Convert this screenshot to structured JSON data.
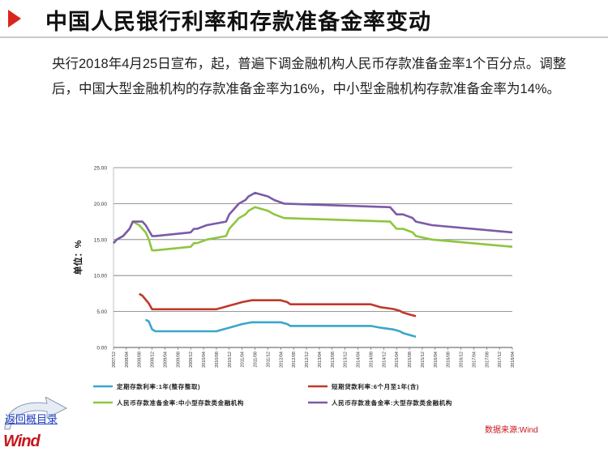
{
  "header": {
    "title": "中国人民银行利率和存款准备金率变动"
  },
  "summary": {
    "text": "央行2018年4月25日宣布，起，普遍下调金融机构人民币存款准备金率1个百分点。调整后，中国大型金融机构的存款准备金率为16%，中小型金融机构存款准备金率为14%。"
  },
  "footer": {
    "back_label": "返回概目录",
    "logo_text": "Wind",
    "source": "数据来源:Wind"
  },
  "colors": {
    "accent": "#d9261c",
    "deposit": "#3aa7c9",
    "loan": "#c0392b",
    "rrr_small": "#8dc63f",
    "rrr_large": "#7b5aa6"
  },
  "chart_data": {
    "type": "line",
    "ylabel": "单位：%",
    "ylim": [
      0,
      25
    ],
    "yticks": [
      "0.00",
      "5.00",
      "10.00",
      "15.00",
      "20.00",
      "25.00"
    ],
    "xlim": [
      "2007/12",
      "2018/04"
    ],
    "xticks": [
      "2007/12",
      "2008/04",
      "2008/08",
      "2008/12",
      "2009/04",
      "2009/08",
      "2009/12",
      "2010/04",
      "2010/08",
      "2010/12",
      "2011/04",
      "2011/08",
      "2011/12",
      "2012/04",
      "2012/08",
      "2012/12",
      "2013/04",
      "2013/08",
      "2013/12",
      "2014/04",
      "2014/08",
      "2014/12",
      "2015/04",
      "2015/08",
      "2015/12",
      "2016/04",
      "2016/08",
      "2016/12",
      "2017/04",
      "2017/08",
      "2017/12",
      "2018/04"
    ],
    "grid": true,
    "legend_position": "bottom",
    "series": [
      {
        "name": "定期存款利率:1年(整存整取)",
        "color_key": "deposit",
        "points": [
          [
            "2008/10",
            3.87
          ],
          [
            "2008/11",
            3.6
          ],
          [
            "2008/12",
            2.52
          ],
          [
            "2009/01",
            2.25
          ],
          [
            "2010/08",
            2.25
          ],
          [
            "2010/10",
            2.5
          ],
          [
            "2010/12",
            2.75
          ],
          [
            "2011/02",
            3.0
          ],
          [
            "2011/04",
            3.25
          ],
          [
            "2011/07",
            3.5
          ],
          [
            "2012/04",
            3.5
          ],
          [
            "2012/06",
            3.25
          ],
          [
            "2012/07",
            3.0
          ],
          [
            "2014/08",
            3.0
          ],
          [
            "2014/11",
            2.75
          ],
          [
            "2015/03",
            2.5
          ],
          [
            "2015/05",
            2.25
          ],
          [
            "2015/06",
            2.0
          ],
          [
            "2015/08",
            1.75
          ],
          [
            "2015/10",
            1.5
          ]
        ]
      },
      {
        "name": "短期贷款利率:6个月至1年(含)",
        "color_key": "loan",
        "points": [
          [
            "2008/08",
            7.47
          ],
          [
            "2008/09",
            7.2
          ],
          [
            "2008/10",
            6.66
          ],
          [
            "2008/11",
            6.12
          ],
          [
            "2008/12",
            5.31
          ],
          [
            "2010/08",
            5.31
          ],
          [
            "2010/10",
            5.56
          ],
          [
            "2010/12",
            5.81
          ],
          [
            "2011/02",
            6.06
          ],
          [
            "2011/04",
            6.31
          ],
          [
            "2011/07",
            6.56
          ],
          [
            "2012/04",
            6.56
          ],
          [
            "2012/06",
            6.31
          ],
          [
            "2012/07",
            6.0
          ],
          [
            "2014/08",
            6.0
          ],
          [
            "2014/11",
            5.6
          ],
          [
            "2015/03",
            5.35
          ],
          [
            "2015/05",
            5.1
          ],
          [
            "2015/06",
            4.85
          ],
          [
            "2015/08",
            4.6
          ],
          [
            "2015/10",
            4.35
          ]
        ]
      },
      {
        "name": "人民币存款准备金率:中小型存款类金融机构",
        "color_key": "rrr_small",
        "points": [
          [
            "2007/12",
            14.5
          ],
          [
            "2008/01",
            15.0
          ],
          [
            "2008/03",
            15.5
          ],
          [
            "2008/04",
            16.0
          ],
          [
            "2008/05",
            16.5
          ],
          [
            "2008/06",
            17.5
          ],
          [
            "2008/08",
            17.0
          ],
          [
            "2008/09",
            16.5
          ],
          [
            "2008/10",
            16.0
          ],
          [
            "2008/11",
            15.0
          ],
          [
            "2008/12",
            13.5
          ],
          [
            "2009/01",
            13.5
          ],
          [
            "2009/12",
            14.0
          ],
          [
            "2010/01",
            14.5
          ],
          [
            "2010/02",
            14.5
          ],
          [
            "2010/05",
            15.0
          ],
          [
            "2010/11",
            15.5
          ],
          [
            "2010/12",
            16.5
          ],
          [
            "2011/01",
            17.0
          ],
          [
            "2011/02",
            17.5
          ],
          [
            "2011/03",
            18.0
          ],
          [
            "2011/05",
            18.5
          ],
          [
            "2011/06",
            19.0
          ],
          [
            "2011/08",
            19.5
          ],
          [
            "2011/12",
            19.0
          ],
          [
            "2012/02",
            18.5
          ],
          [
            "2012/05",
            18.0
          ],
          [
            "2015/02",
            17.5
          ],
          [
            "2015/04",
            16.5
          ],
          [
            "2015/06",
            16.5
          ],
          [
            "2015/09",
            16.0
          ],
          [
            "2015/10",
            15.5
          ],
          [
            "2016/03",
            15.0
          ],
          [
            "2018/04",
            14.0
          ]
        ]
      },
      {
        "name": "人民币存款准备金率:大型存款类金融机构",
        "color_key": "rrr_large",
        "points": [
          [
            "2007/12",
            14.5
          ],
          [
            "2008/01",
            15.0
          ],
          [
            "2008/03",
            15.5
          ],
          [
            "2008/04",
            16.0
          ],
          [
            "2008/05",
            16.5
          ],
          [
            "2008/06",
            17.5
          ],
          [
            "2008/09",
            17.5
          ],
          [
            "2008/10",
            17.0
          ],
          [
            "2008/12",
            15.5
          ],
          [
            "2009/01",
            15.5
          ],
          [
            "2009/12",
            16.0
          ],
          [
            "2010/01",
            16.5
          ],
          [
            "2010/02",
            16.5
          ],
          [
            "2010/05",
            17.0
          ],
          [
            "2010/11",
            17.5
          ],
          [
            "2010/12",
            18.5
          ],
          [
            "2011/01",
            19.0
          ],
          [
            "2011/02",
            19.5
          ],
          [
            "2011/03",
            20.0
          ],
          [
            "2011/05",
            20.5
          ],
          [
            "2011/06",
            21.0
          ],
          [
            "2011/08",
            21.5
          ],
          [
            "2011/12",
            21.0
          ],
          [
            "2012/02",
            20.5
          ],
          [
            "2012/05",
            20.0
          ],
          [
            "2015/02",
            19.5
          ],
          [
            "2015/04",
            18.5
          ],
          [
            "2015/06",
            18.5
          ],
          [
            "2015/09",
            18.0
          ],
          [
            "2015/10",
            17.5
          ],
          [
            "2016/03",
            17.0
          ],
          [
            "2018/04",
            16.0
          ]
        ]
      }
    ]
  }
}
